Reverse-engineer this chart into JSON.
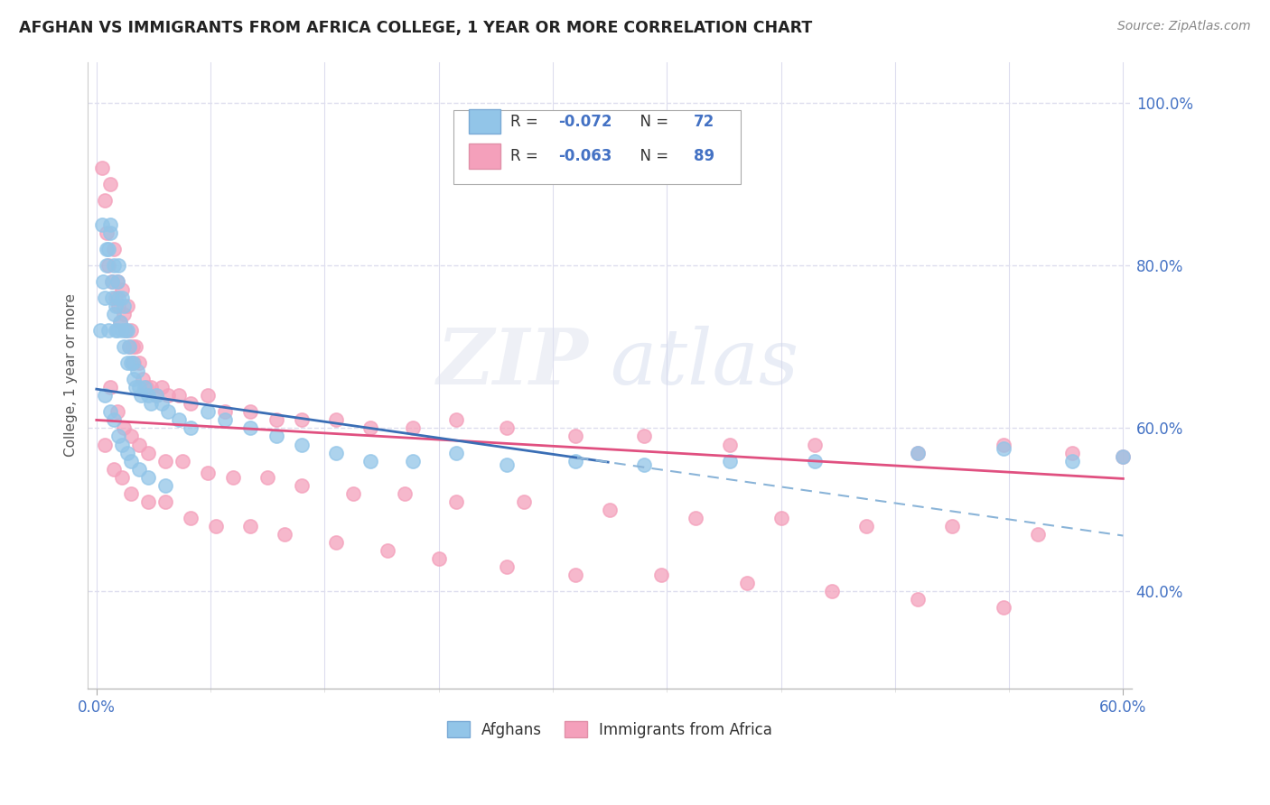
{
  "title": "AFGHAN VS IMMIGRANTS FROM AFRICA COLLEGE, 1 YEAR OR MORE CORRELATION CHART",
  "source": "Source: ZipAtlas.com",
  "ylabel": "College, 1 year or more",
  "color_blue": "#92C5E8",
  "color_pink": "#F4A0BB",
  "color_blue_line": "#3A6EB5",
  "color_pink_line": "#E05080",
  "color_blue_dashed": "#8AB4D8",
  "grid_color": "#DDDDEE",
  "xmin": 0.0,
  "xmax": 0.6,
  "ymin": 0.28,
  "ymax": 1.05,
  "yticks": [
    0.4,
    0.6,
    0.8,
    1.0
  ],
  "ytick_labels": [
    "40.0%",
    "60.0%",
    "80.0%",
    "100.0%"
  ],
  "xtick_labels": [
    "0.0%",
    "60.0%"
  ],
  "R_blue": -0.072,
  "N_blue": 72,
  "R_pink": -0.063,
  "N_pink": 89,
  "watermark_zip": "ZIP",
  "watermark_atlas": "atlas",
  "legend_r1_val": "-0.072",
  "legend_n1_val": "72",
  "legend_r2_val": "-0.063",
  "legend_n2_val": "89",
  "bottom_legend1": "Afghans",
  "bottom_legend2": "Immigrants from Africa",
  "afghans_x": [
    0.002,
    0.003,
    0.004,
    0.005,
    0.006,
    0.006,
    0.007,
    0.007,
    0.008,
    0.008,
    0.009,
    0.009,
    0.01,
    0.01,
    0.011,
    0.011,
    0.012,
    0.012,
    0.013,
    0.013,
    0.014,
    0.015,
    0.015,
    0.016,
    0.016,
    0.017,
    0.018,
    0.018,
    0.019,
    0.02,
    0.021,
    0.022,
    0.023,
    0.024,
    0.025,
    0.026,
    0.028,
    0.03,
    0.032,
    0.035,
    0.038,
    0.042,
    0.048,
    0.055,
    0.065,
    0.075,
    0.09,
    0.105,
    0.12,
    0.14,
    0.16,
    0.185,
    0.21,
    0.24,
    0.28,
    0.32,
    0.37,
    0.42,
    0.48,
    0.53,
    0.57,
    0.6,
    0.005,
    0.008,
    0.01,
    0.013,
    0.015,
    0.018,
    0.02,
    0.025,
    0.03,
    0.04
  ],
  "afghans_y": [
    0.72,
    0.85,
    0.78,
    0.76,
    0.8,
    0.82,
    0.82,
    0.72,
    0.85,
    0.84,
    0.78,
    0.76,
    0.74,
    0.8,
    0.72,
    0.75,
    0.78,
    0.72,
    0.76,
    0.8,
    0.73,
    0.72,
    0.76,
    0.7,
    0.75,
    0.72,
    0.68,
    0.72,
    0.7,
    0.68,
    0.68,
    0.66,
    0.65,
    0.67,
    0.65,
    0.64,
    0.65,
    0.64,
    0.63,
    0.64,
    0.63,
    0.62,
    0.61,
    0.6,
    0.62,
    0.61,
    0.6,
    0.59,
    0.58,
    0.57,
    0.56,
    0.56,
    0.57,
    0.555,
    0.56,
    0.555,
    0.56,
    0.56,
    0.57,
    0.575,
    0.56,
    0.565,
    0.64,
    0.62,
    0.61,
    0.59,
    0.58,
    0.57,
    0.56,
    0.55,
    0.54,
    0.53
  ],
  "africa_x": [
    0.003,
    0.005,
    0.006,
    0.007,
    0.008,
    0.009,
    0.01,
    0.011,
    0.012,
    0.013,
    0.014,
    0.015,
    0.016,
    0.017,
    0.018,
    0.019,
    0.02,
    0.021,
    0.022,
    0.023,
    0.025,
    0.027,
    0.029,
    0.032,
    0.035,
    0.038,
    0.042,
    0.048,
    0.055,
    0.065,
    0.075,
    0.09,
    0.105,
    0.12,
    0.14,
    0.16,
    0.185,
    0.21,
    0.24,
    0.28,
    0.32,
    0.37,
    0.42,
    0.48,
    0.53,
    0.57,
    0.6,
    0.008,
    0.012,
    0.016,
    0.02,
    0.025,
    0.03,
    0.04,
    0.05,
    0.065,
    0.08,
    0.1,
    0.12,
    0.15,
    0.18,
    0.21,
    0.25,
    0.3,
    0.35,
    0.4,
    0.45,
    0.5,
    0.55,
    0.005,
    0.01,
    0.015,
    0.02,
    0.03,
    0.04,
    0.055,
    0.07,
    0.09,
    0.11,
    0.14,
    0.17,
    0.2,
    0.24,
    0.28,
    0.33,
    0.38,
    0.43,
    0.48,
    0.53
  ],
  "africa_y": [
    0.92,
    0.88,
    0.84,
    0.8,
    0.9,
    0.78,
    0.82,
    0.76,
    0.78,
    0.75,
    0.73,
    0.77,
    0.74,
    0.72,
    0.75,
    0.7,
    0.72,
    0.7,
    0.68,
    0.7,
    0.68,
    0.66,
    0.65,
    0.65,
    0.64,
    0.65,
    0.64,
    0.64,
    0.63,
    0.64,
    0.62,
    0.62,
    0.61,
    0.61,
    0.61,
    0.6,
    0.6,
    0.61,
    0.6,
    0.59,
    0.59,
    0.58,
    0.58,
    0.57,
    0.58,
    0.57,
    0.565,
    0.65,
    0.62,
    0.6,
    0.59,
    0.58,
    0.57,
    0.56,
    0.56,
    0.545,
    0.54,
    0.54,
    0.53,
    0.52,
    0.52,
    0.51,
    0.51,
    0.5,
    0.49,
    0.49,
    0.48,
    0.48,
    0.47,
    0.58,
    0.55,
    0.54,
    0.52,
    0.51,
    0.51,
    0.49,
    0.48,
    0.48,
    0.47,
    0.46,
    0.45,
    0.44,
    0.43,
    0.42,
    0.42,
    0.41,
    0.4,
    0.39,
    0.38
  ]
}
